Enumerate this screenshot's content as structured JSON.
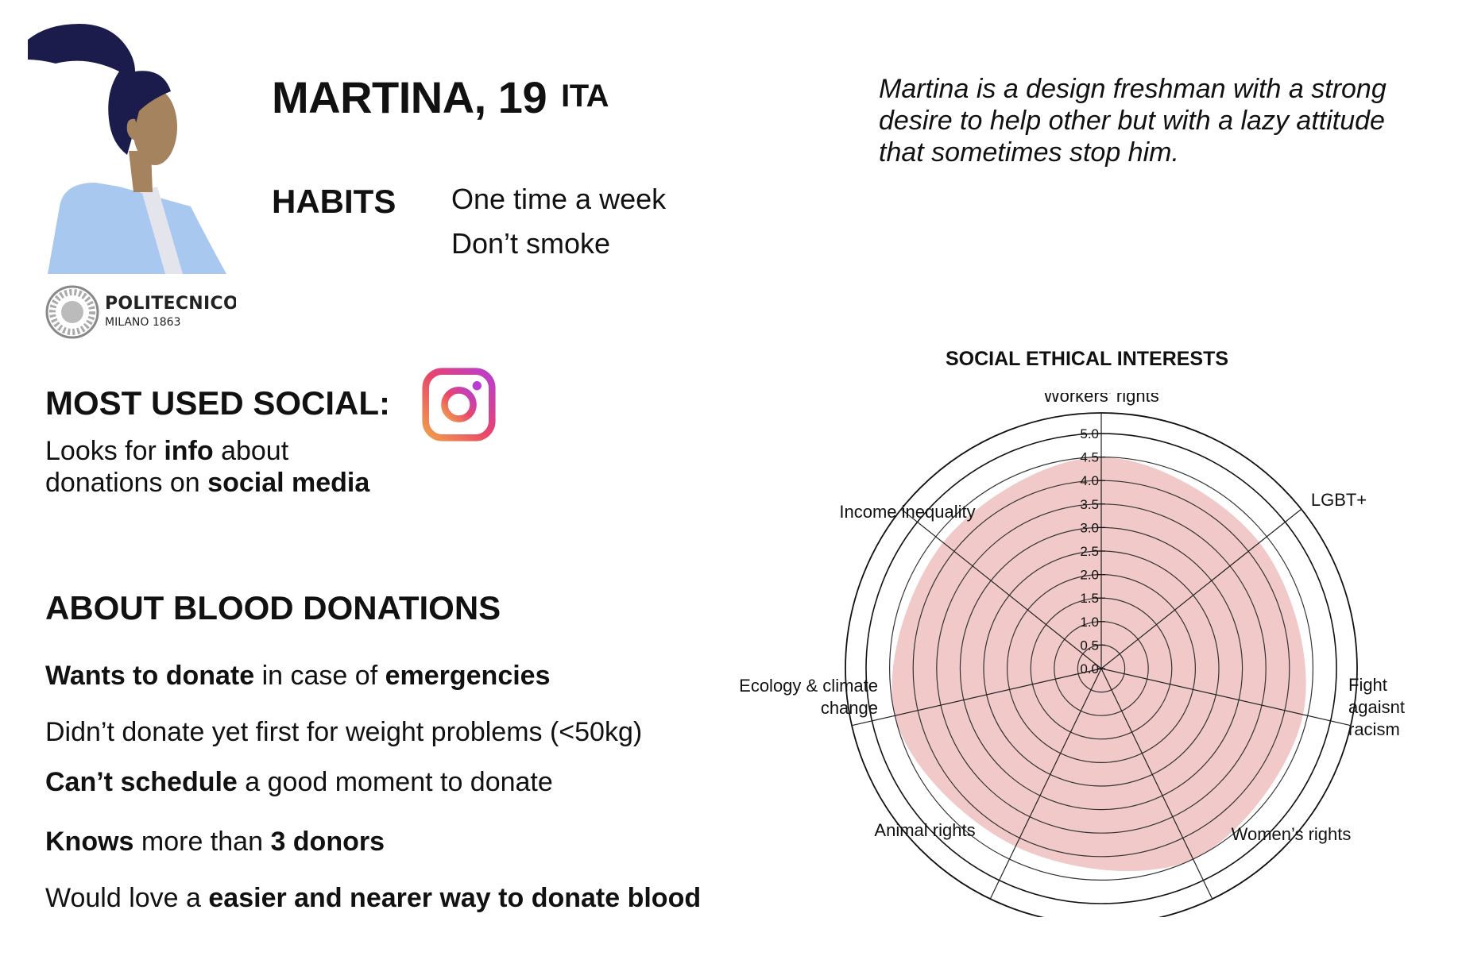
{
  "persona": {
    "name": "MARTINA, 19",
    "country": "ITA",
    "description": "Martina is a design freshman with a strong desire to help other but with a lazy attitude that sometimes stop him."
  },
  "logo": {
    "name": "POLITECNICO",
    "city": "MILANO 1863"
  },
  "habits": {
    "title": "HABITS",
    "items": [
      "One time a week",
      "Don’t smoke"
    ]
  },
  "social": {
    "title": "MOST USED SOCIAL:",
    "icon": "instagram-icon",
    "line1_a": "Looks for ",
    "line1_b": "info",
    "line1_c": " about",
    "line2_a": "donations on ",
    "line2_b": "social media"
  },
  "about": {
    "title": "ABOUT BLOOD DONATIONS",
    "fact1_a": "Wants to donate",
    "fact1_b": " in case of ",
    "fact1_c": "emergencies",
    "fact2": "Didn’t donate yet first for weight problems (<50kg)",
    "fact3_a": "Can’t schedule",
    "fact3_b": " a good moment to donate",
    "fact4_a": "Knows",
    "fact4_b": " more than ",
    "fact4_c": "3 donors",
    "fact5_a": "Would love a ",
    "fact5_b": "easier and nearer way to donate blood"
  },
  "colors": {
    "hair": "#1c1c4c",
    "skin": "#a5835f",
    "jacket": "#a8c8f0",
    "fill": "#f2c9c9",
    "insta_start": "#f0a04b",
    "insta_end": "#b83dd1"
  },
  "chart_data": {
    "type": "radar",
    "title": "SOCIAL ETHICAL INTERESTS",
    "categories": [
      "Workers’ rights",
      "LGBT+",
      "Fight agaisnt racism",
      "Women’s rights",
      "Animal rights",
      "Ecology & climate change",
      "Income inequality"
    ],
    "values": [
      4.5,
      4.3,
      4.4,
      4.5,
      4.2,
      4.5,
      4.3
    ],
    "r_ticks": [
      "0.0",
      "0.5",
      "1.0",
      "1.5",
      "2.0",
      "2.5",
      "3.0",
      "3.5",
      "4.0",
      "4.5",
      "5.0"
    ],
    "rlim": [
      0,
      5
    ],
    "grid": true
  }
}
